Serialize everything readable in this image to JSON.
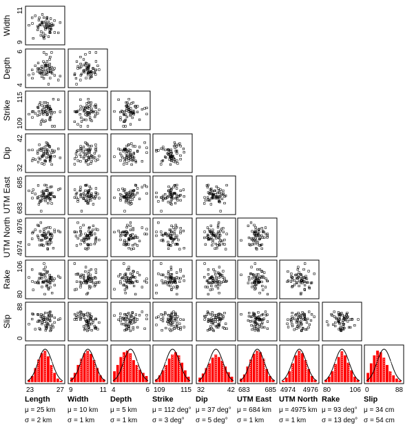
{
  "chart_data": {
    "type": "scatter-matrix",
    "samples": 60,
    "variables": [
      {
        "key": "length",
        "label": "Length",
        "unit": "km",
        "ticks": [
          "23",
          "27"
        ],
        "range": [
          23,
          27
        ],
        "mu": "μ = 25 km",
        "sigma": "σ = 2 km"
      },
      {
        "key": "width",
        "label": "Width",
        "unit": "km",
        "ticks": [
          "9",
          "11"
        ],
        "range": [
          9,
          11
        ],
        "mu": "μ = 10 km",
        "sigma": "σ = 1 km"
      },
      {
        "key": "depth",
        "label": "Depth",
        "unit": "km",
        "ticks": [
          "4",
          "6"
        ],
        "range": [
          4,
          6
        ],
        "mu": "μ = 5 km",
        "sigma": "σ = 1 km"
      },
      {
        "key": "strike",
        "label": "Strike",
        "unit": "deg",
        "ticks": [
          "109",
          "115"
        ],
        "range": [
          109,
          115
        ],
        "mu": "μ = 112 deg°",
        "sigma": "σ = 3 deg°"
      },
      {
        "key": "dip",
        "label": "Dip",
        "unit": "deg",
        "ticks": [
          "32",
          "42"
        ],
        "range": [
          32,
          42
        ],
        "mu": "μ = 37 deg°",
        "sigma": "σ = 5 deg°"
      },
      {
        "key": "utm_east",
        "label": "UTM East",
        "unit": "km",
        "ticks": [
          "683",
          "685"
        ],
        "range": [
          683,
          685
        ],
        "mu": "μ = 684 km",
        "sigma": "σ = 1 km"
      },
      {
        "key": "utm_north",
        "label": "UTM North",
        "unit": "km",
        "ticks": [
          "4974",
          "4976"
        ],
        "range": [
          4974,
          4976
        ],
        "mu": "μ = 4975 km",
        "sigma": "σ = 1 km"
      },
      {
        "key": "rake",
        "label": "Rake",
        "unit": "deg",
        "ticks": [
          "80",
          "106"
        ],
        "range": [
          80,
          106
        ],
        "mu": "μ = 93 deg°",
        "sigma": "σ = 13 deg°"
      },
      {
        "key": "slip",
        "label": "Slip",
        "unit": "cm",
        "ticks": [
          "0",
          "88"
        ],
        "range": [
          0,
          88
        ],
        "mu": "μ = 34 cm",
        "sigma": "σ = 54 cm"
      }
    ],
    "row_labels": [
      "Width",
      "Depth",
      "Strike",
      "Dip",
      "UTM East",
      "UTM North",
      "Rake",
      "Slip"
    ],
    "histograms": [
      [
        0.08,
        0.2,
        0.45,
        0.72,
        0.92,
        1.0,
        0.82,
        0.55,
        0.3,
        0.12,
        0.05
      ],
      [
        0.15,
        0.3,
        0.55,
        0.75,
        0.92,
        1.0,
        0.9,
        0.7,
        0.45,
        0.22,
        0.1
      ],
      [
        0.35,
        0.55,
        0.8,
        0.95,
        1.0,
        0.92,
        0.7,
        0.55,
        0.4,
        0.3,
        0.2
      ],
      [
        0.1,
        0.22,
        0.38,
        0.55,
        0.75,
        0.88,
        0.95,
        0.85,
        0.62,
        0.38,
        0.18
      ],
      [
        0.15,
        0.28,
        0.45,
        0.6,
        0.78,
        0.88,
        0.8,
        0.68,
        0.5,
        0.32,
        0.18
      ],
      [
        0.12,
        0.25,
        0.5,
        0.72,
        0.9,
        1.0,
        0.95,
        0.75,
        0.42,
        0.2,
        0.08
      ],
      [
        0.05,
        0.15,
        0.35,
        0.6,
        0.85,
        1.0,
        0.92,
        0.7,
        0.42,
        0.2,
        0.08
      ],
      [
        0.08,
        0.18,
        0.35,
        0.58,
        0.8,
        0.98,
        0.85,
        0.62,
        0.38,
        0.18,
        0.08
      ],
      [
        0.3,
        0.6,
        0.85,
        1.0,
        0.95,
        0.78,
        0.55,
        0.35,
        0.22,
        0.12,
        0.06
      ]
    ],
    "colors": {
      "bars": "#ff0000",
      "curve": "#000000",
      "points": "#000000"
    }
  }
}
